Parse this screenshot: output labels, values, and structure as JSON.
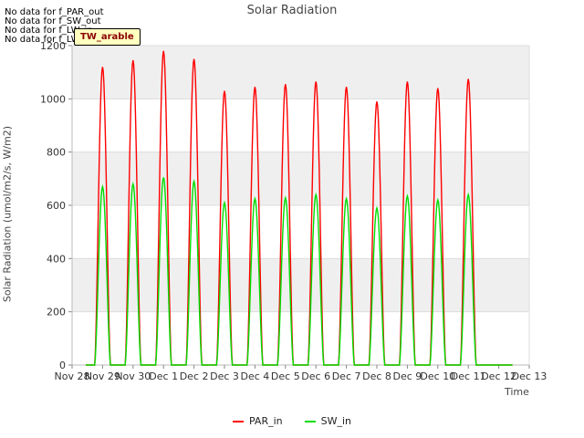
{
  "title": "Solar Radiation",
  "no_data_messages": [
    "No data for f_PAR_out",
    "No data for f_SW_out",
    "No data for f_LW_in",
    "No data for f_LW_out"
  ],
  "badge_text": "TW_arable",
  "colors": {
    "PAR_in": "#ff0000",
    "SW_in": "#00dd00",
    "band": "#efefef",
    "grid": "#dcdcdc",
    "badge_bg": "#ffffc0",
    "badge_fg": "#8b0000"
  },
  "chart_data": {
    "type": "line",
    "title": "Solar Radiation",
    "xlabel": "Time",
    "ylabel": "Solar Radiation (umol/m2/s, W/m2)",
    "xlim": [
      0,
      15
    ],
    "ylim": [
      0,
      1200
    ],
    "x_tick_labels": [
      "Nov 28",
      "Nov 29",
      "Nov 30",
      "Dec 1",
      "Dec 2",
      "Dec 3",
      "Dec 4",
      "Dec 5",
      "Dec 6",
      "Dec 7",
      "Dec 8",
      "Dec 9",
      "Dec 10",
      "Dec 11",
      "Dec 12",
      "Dec 13"
    ],
    "y_ticks": [
      0,
      200,
      400,
      600,
      800,
      1000,
      1200
    ],
    "data_start": 0.45,
    "data_end": 14.45,
    "series": [
      {
        "name": "PAR_in",
        "color": "#ff0000",
        "day_peaks": [
          1120,
          1145,
          1180,
          1150,
          1030,
          1045,
          1055,
          1065,
          1045,
          990,
          1065,
          1040,
          1075
        ]
      },
      {
        "name": "SW_in",
        "color": "#00dd00",
        "day_peaks": [
          670,
          680,
          705,
          690,
          610,
          625,
          628,
          640,
          625,
          590,
          635,
          620,
          640
        ]
      }
    ],
    "peak_days": [
      1,
      2,
      3,
      4,
      5,
      6,
      7,
      8,
      9,
      10,
      11,
      12,
      13
    ],
    "legend_position": "bottom-center"
  }
}
